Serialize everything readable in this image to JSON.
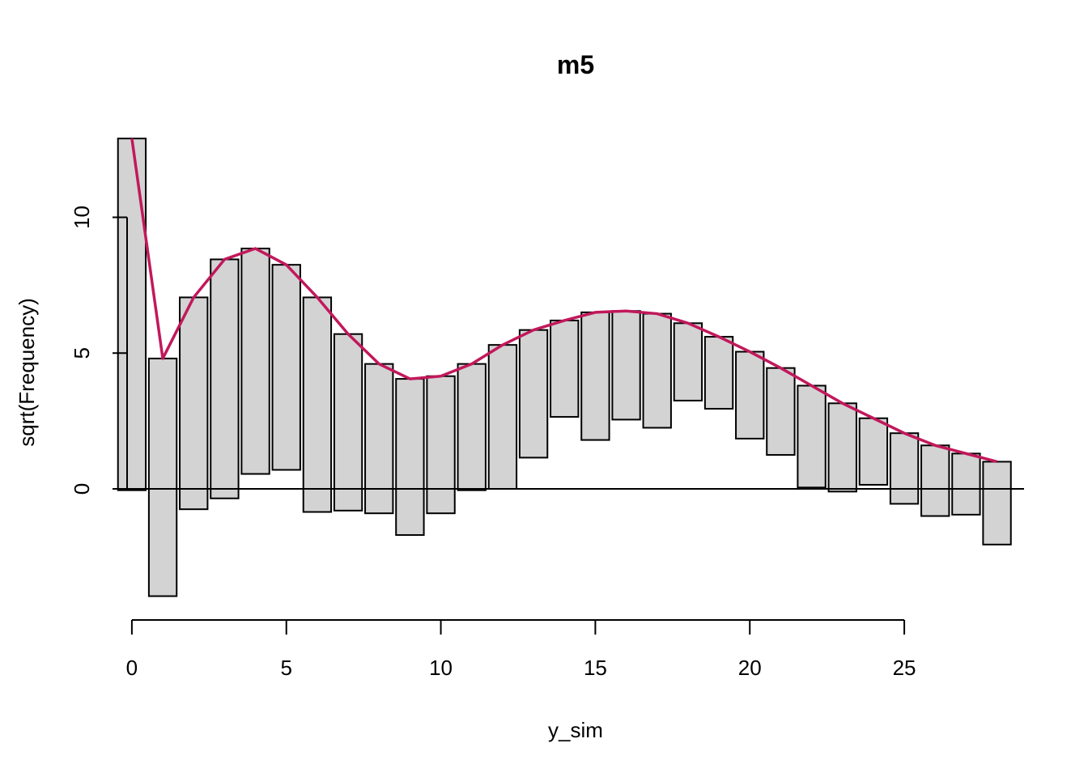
{
  "chart_data": {
    "type": "bar",
    "style": "hanging rootogram",
    "title": "m5",
    "xlabel": "y_sim",
    "ylabel": "sqrt(Frequency)",
    "x_ticks": [
      0,
      5,
      10,
      15,
      20,
      25
    ],
    "y_ticks": [
      0,
      5,
      10
    ],
    "xlim": [
      -0.6,
      29.4
    ],
    "ylim": [
      -4.5,
      13.5
    ],
    "reference_line": 0,
    "bar_fill": "#d3d3d3",
    "line_color": "#c2185b",
    "x": [
      0,
      1,
      2,
      3,
      4,
      5,
      6,
      7,
      8,
      9,
      10,
      11,
      12,
      13,
      14,
      15,
      16,
      17,
      18,
      19,
      20,
      21,
      22,
      23,
      24,
      25,
      26,
      27,
      28
    ],
    "bar_top": [
      12.9,
      4.8,
      7.05,
      8.45,
      8.85,
      8.25,
      7.05,
      5.7,
      4.6,
      4.05,
      4.15,
      4.6,
      5.3,
      5.85,
      6.2,
      6.5,
      6.55,
      6.45,
      6.1,
      5.6,
      5.05,
      4.45,
      3.8,
      3.15,
      2.6,
      2.05,
      1.6,
      1.3,
      1.0
    ],
    "bar_bottom": [
      -0.05,
      -3.95,
      -0.75,
      -0.35,
      0.55,
      0.7,
      -0.85,
      -0.8,
      -0.9,
      -1.7,
      -0.9,
      -0.05,
      0.0,
      1.15,
      2.65,
      1.8,
      2.55,
      2.25,
      3.25,
      2.95,
      1.85,
      1.25,
      0.05,
      -0.1,
      0.15,
      -0.55,
      -1.0,
      -0.95,
      -2.05
    ],
    "expected_sqrt_freq": [
      12.9,
      4.8,
      7.05,
      8.45,
      8.85,
      8.25,
      7.05,
      5.7,
      4.6,
      4.05,
      4.15,
      4.6,
      5.3,
      5.85,
      6.2,
      6.5,
      6.55,
      6.45,
      6.1,
      5.6,
      5.05,
      4.45,
      3.8,
      3.15,
      2.6,
      2.05,
      1.6,
      1.3,
      1.0
    ]
  }
}
